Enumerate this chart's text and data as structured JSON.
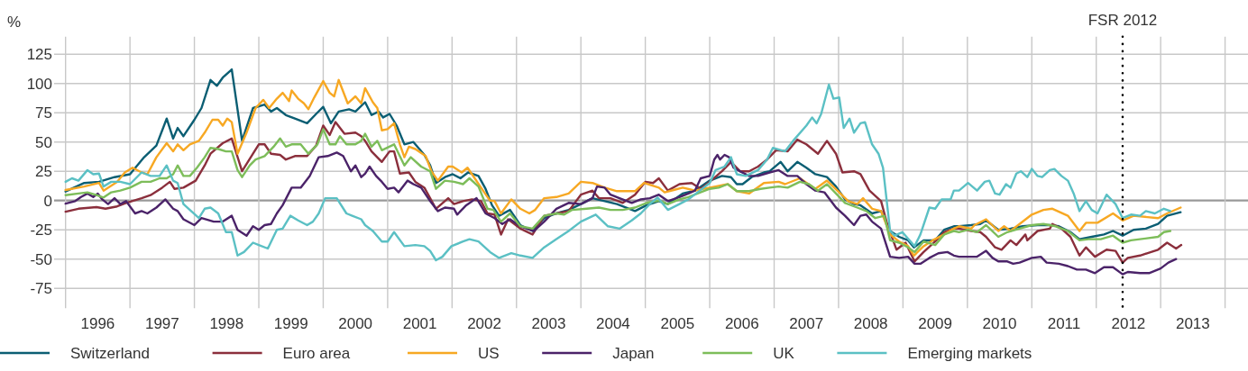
{
  "chart_data": {
    "type": "line",
    "ylabel": "%",
    "xlim": [
      1996,
      2014.3
    ],
    "ylim": [
      -92,
      140
    ],
    "xticks": [
      {
        "value": 1996,
        "label": null
      },
      {
        "value": 1996.5,
        "label": "1996"
      },
      {
        "value": 1997,
        "label": null
      },
      {
        "value": 1997.5,
        "label": "1997"
      },
      {
        "value": 1998,
        "label": null
      },
      {
        "value": 1998.5,
        "label": "1998"
      },
      {
        "value": 1999,
        "label": null
      },
      {
        "value": 1999.5,
        "label": "1999"
      },
      {
        "value": 2000,
        "label": null
      },
      {
        "value": 2000.5,
        "label": "2000"
      },
      {
        "value": 2001,
        "label": null
      },
      {
        "value": 2001.5,
        "label": "2001"
      },
      {
        "value": 2002,
        "label": null
      },
      {
        "value": 2002.5,
        "label": "2002"
      },
      {
        "value": 2003,
        "label": null
      },
      {
        "value": 2003.5,
        "label": "2003"
      },
      {
        "value": 2004,
        "label": null
      },
      {
        "value": 2004.5,
        "label": "2004"
      },
      {
        "value": 2005,
        "label": null
      },
      {
        "value": 2005.5,
        "label": "2005"
      },
      {
        "value": 2006,
        "label": null
      },
      {
        "value": 2006.5,
        "label": "2006"
      },
      {
        "value": 2007,
        "label": null
      },
      {
        "value": 2007.5,
        "label": "2007"
      },
      {
        "value": 2008,
        "label": null
      },
      {
        "value": 2008.5,
        "label": "2008"
      },
      {
        "value": 2009,
        "label": null
      },
      {
        "value": 2009.5,
        "label": "2009"
      },
      {
        "value": 2010,
        "label": null
      },
      {
        "value": 2010.5,
        "label": "2010"
      },
      {
        "value": 2011,
        "label": null
      },
      {
        "value": 2011.5,
        "label": "2011"
      },
      {
        "value": 2012,
        "label": null
      },
      {
        "value": 2012.5,
        "label": "2012"
      },
      {
        "value": 2013,
        "label": null
      },
      {
        "value": 2013.5,
        "label": "2013"
      },
      {
        "value": 2014,
        "label": null
      }
    ],
    "yticks": [
      125,
      100,
      75,
      50,
      25,
      0,
      -25,
      -50,
      -75
    ],
    "grid": true,
    "legend": "bottom",
    "ref_lines": [
      {
        "axis": "x",
        "value": 2012.41,
        "label": "FSR 2012",
        "color": "#000000",
        "line_style": "dotted"
      }
    ],
    "series": [
      {
        "name": "Switzerland",
        "color": "#0b5e73",
        "x": [
          1996.0,
          1996.29,
          1996.52,
          1996.76,
          1997.0,
          1997.22,
          1997.41,
          1997.57,
          1997.67,
          1997.74,
          1997.83,
          1998.0,
          1998.11,
          1998.25,
          1998.35,
          1998.44,
          1998.58,
          1998.74,
          1998.91,
          1999.09,
          1999.19,
          1999.28,
          1999.42,
          1999.56,
          1999.75,
          1999.89,
          2000.0,
          2000.12,
          2000.24,
          2000.4,
          2000.5,
          2000.65,
          2000.75,
          2000.86,
          2000.93,
          2001.03,
          2001.14,
          2001.26,
          2001.4,
          2001.57,
          2001.66,
          2001.75,
          2001.89,
          2002.01,
          2002.13,
          2002.25,
          2002.41,
          2002.52,
          2002.62,
          2002.73,
          2002.9,
          2003.06,
          2003.25,
          2003.43,
          2003.62,
          2003.81,
          2004.0,
          2004.18,
          2004.37,
          2004.56,
          2004.84,
          2005.02,
          2005.21,
          2005.35,
          2005.58,
          2005.77,
          2006.0,
          2006.19,
          2006.33,
          2006.42,
          2006.51,
          2006.65,
          2006.84,
          2006.93,
          2007.1,
          2007.21,
          2007.36,
          2007.5,
          2007.64,
          2007.82,
          2007.96,
          2008.1,
          2008.24,
          2008.34,
          2008.52,
          2008.66,
          2008.8,
          2008.94,
          2009.08,
          2009.17,
          2009.32,
          2009.5,
          2009.64,
          2009.79,
          2009.87,
          2010.06,
          2010.2,
          2010.29,
          2010.48,
          2010.67,
          2010.86,
          2011.09,
          2011.28,
          2011.42,
          2011.6,
          2011.74,
          2011.93,
          2012.12,
          2012.26,
          2012.41,
          2012.58,
          2012.77,
          2012.96,
          2013.1,
          2013.31
        ],
        "values": [
          7.7,
          15,
          16,
          20,
          22.5,
          37,
          47,
          70,
          53,
          62,
          55,
          69,
          79,
          103,
          98,
          105,
          112,
          51,
          79,
          82,
          76,
          79,
          73,
          70,
          66,
          74,
          80,
          66,
          76,
          78,
          76,
          84,
          73,
          76,
          71,
          74,
          64,
          48,
          50,
          39,
          30,
          15,
          20,
          22.5,
          19,
          24,
          21,
          10,
          -4,
          -13,
          -8,
          -21,
          -26,
          -15,
          -11,
          -8,
          -3,
          2,
          -0.5,
          -3,
          -9,
          -4,
          -0.5,
          -3,
          6,
          8.5,
          17,
          21,
          20,
          14,
          14,
          20,
          24,
          25,
          33,
          25,
          33,
          28,
          22.5,
          20,
          12,
          1,
          -3,
          -4,
          -11,
          -9,
          -26,
          -31,
          -34,
          -40,
          -34,
          -34,
          -25,
          -22,
          -22,
          -21,
          -20,
          -17,
          -25,
          -24,
          -22,
          -21,
          -21,
          -22,
          -27,
          -33,
          -31,
          -29,
          -26,
          -30,
          -25,
          -24,
          -20,
          -13,
          -10
        ]
      },
      {
        "name": "Euro area",
        "color": "#8b2f3c",
        "x": [
          1996.0,
          1996.2,
          1996.48,
          1996.62,
          1996.8,
          1996.94,
          1997.18,
          1997.32,
          1997.5,
          1997.62,
          1997.69,
          1997.83,
          1998.02,
          1998.16,
          1998.25,
          1998.44,
          1998.58,
          1998.74,
          1998.91,
          1999.0,
          1999.09,
          1999.19,
          1999.33,
          1999.42,
          1999.56,
          1999.75,
          1999.89,
          2000.0,
          2000.1,
          2000.19,
          2000.33,
          2000.5,
          2000.59,
          2000.65,
          2000.75,
          2000.91,
          2001.03,
          2001.1,
          2001.19,
          2001.33,
          2001.43,
          2001.57,
          2001.66,
          2001.75,
          2001.94,
          2002.03,
          2002.17,
          2002.31,
          2002.45,
          2002.55,
          2002.66,
          2002.76,
          2002.87,
          2003.06,
          2003.25,
          2003.43,
          2003.62,
          2003.81,
          2004.0,
          2004.18,
          2004.28,
          2004.46,
          2004.65,
          2004.84,
          2005.0,
          2005.12,
          2005.21,
          2005.35,
          2005.53,
          2005.72,
          2005.86,
          2006.0,
          2006.19,
          2006.33,
          2006.47,
          2006.61,
          2006.75,
          2006.89,
          2007.03,
          2007.21,
          2007.36,
          2007.5,
          2007.68,
          2007.82,
          2007.96,
          2008.06,
          2008.24,
          2008.34,
          2008.48,
          2008.66,
          2008.76,
          2008.9,
          2009.04,
          2009.18,
          2009.32,
          2009.5,
          2009.64,
          2009.79,
          2009.87,
          2010.06,
          2010.2,
          2010.29,
          2010.43,
          2010.53,
          2010.67,
          2010.76,
          2010.9,
          2010.93,
          2011.09,
          2011.28,
          2011.32,
          2011.46,
          2011.6,
          2011.74,
          2011.84,
          2011.98,
          2012.16,
          2012.3,
          2012.41,
          2012.49,
          2012.68,
          2012.96,
          2013.1,
          2013.24,
          2013.32
        ],
        "values": [
          -9.5,
          -7,
          -5.6,
          -7,
          -5,
          -2,
          2,
          4.6,
          11,
          16,
          10,
          11,
          17,
          30,
          40,
          49,
          53,
          25,
          40,
          48,
          48,
          40,
          39,
          35,
          38,
          38,
          47,
          64,
          56,
          67,
          57,
          58,
          55,
          51,
          42,
          33,
          42,
          42,
          23,
          24,
          16,
          11,
          2,
          -7,
          2,
          -3,
          -0.5,
          1,
          -0.5,
          -11,
          -12,
          -29,
          -16,
          -24,
          -29,
          -13,
          -11,
          -9,
          5,
          8.5,
          2,
          2,
          -2,
          5,
          16,
          15,
          19,
          8.5,
          14,
          15,
          10,
          16,
          25,
          33,
          25,
          25,
          29,
          35,
          43,
          42,
          52,
          48,
          40,
          51,
          40,
          24,
          25,
          22.5,
          8.5,
          -0.5,
          -21,
          -42,
          -36,
          -52,
          -44,
          -35,
          -27,
          -24,
          -24,
          -26,
          -27,
          -31,
          -40,
          -42,
          -34,
          -38,
          -29,
          -34,
          -26,
          -24,
          -20,
          -24,
          -31,
          -47,
          -40,
          -48,
          -42,
          -43,
          -53,
          -49,
          -47,
          -42,
          -36,
          -41,
          -38
        ]
      },
      {
        "name": "US",
        "color": "#f7a823",
        "x": [
          1996.0,
          1996.29,
          1996.52,
          1996.59,
          1996.8,
          1996.92,
          1997.04,
          1997.18,
          1997.27,
          1997.41,
          1997.57,
          1997.67,
          1997.74,
          1997.83,
          1997.93,
          1998.07,
          1998.16,
          1998.28,
          1998.37,
          1998.44,
          1998.51,
          1998.58,
          1998.67,
          1998.81,
          1998.95,
          1999.07,
          1999.16,
          1999.28,
          1999.37,
          1999.47,
          1999.51,
          1999.61,
          1999.7,
          1999.77,
          1999.86,
          2000.0,
          2000.1,
          2000.17,
          2000.24,
          2000.38,
          2000.5,
          2000.59,
          2000.65,
          2000.77,
          2000.84,
          2000.91,
          2001.0,
          2001.1,
          2001.19,
          2001.26,
          2001.33,
          2001.43,
          2001.59,
          2001.68,
          2001.78,
          2001.94,
          2002.01,
          2002.15,
          2002.24,
          2002.34,
          2002.5,
          2002.59,
          2002.66,
          2002.76,
          2002.92,
          2003.06,
          2003.2,
          2003.29,
          2003.43,
          2003.62,
          2003.81,
          2004.0,
          2004.18,
          2004.37,
          2004.56,
          2004.84,
          2004.98,
          2005.21,
          2005.3,
          2005.44,
          2005.58,
          2005.77,
          2006.0,
          2006.28,
          2006.42,
          2006.61,
          2006.84,
          2007.07,
          2007.17,
          2007.4,
          2007.64,
          2007.82,
          2008.01,
          2008.15,
          2008.29,
          2008.38,
          2008.52,
          2008.66,
          2008.8,
          2008.94,
          2009.08,
          2009.17,
          2009.32,
          2009.46,
          2009.64,
          2009.79,
          2009.87,
          2010.06,
          2010.11,
          2010.29,
          2010.48,
          2010.57,
          2010.67,
          2010.81,
          2011.0,
          2011.18,
          2011.32,
          2011.56,
          2011.74,
          2011.84,
          2012.02,
          2012.26,
          2012.41,
          2012.58,
          2012.96,
          2013.1,
          2013.31
        ],
        "values": [
          9,
          12,
          15,
          8.5,
          16,
          24,
          28,
          24,
          22.5,
          37,
          49,
          42,
          48,
          43,
          48,
          51,
          58,
          69,
          69,
          64,
          70,
          67,
          40,
          58,
          79,
          86,
          79,
          87,
          92,
          85,
          94,
          87,
          83,
          78,
          88,
          102,
          92,
          89,
          103,
          83,
          89,
          83,
          96,
          84,
          79,
          60,
          61,
          66,
          48,
          37,
          46,
          44,
          38,
          25,
          17,
          29,
          29,
          24,
          28,
          20,
          7,
          0,
          -0.5,
          -11,
          1,
          -7,
          -11,
          -8,
          2,
          3,
          6,
          16,
          15,
          11,
          8,
          8,
          15,
          11,
          7,
          9,
          11,
          8.5,
          11,
          14,
          8,
          6,
          15,
          16,
          14,
          19,
          10,
          17,
          7,
          -0.5,
          -3,
          2,
          -7,
          -9,
          -29,
          -35,
          -39,
          -47,
          -39,
          -34,
          -29,
          -24,
          -22,
          -24,
          -21,
          -16,
          -26,
          -22,
          -26,
          -20,
          -12,
          -8,
          -7,
          -13,
          -26,
          -19,
          -19,
          -11,
          -17,
          -13,
          -15,
          -11,
          -6
        ]
      },
      {
        "name": "Japan",
        "color": "#4b2369",
        "x": [
          1996.0,
          1996.15,
          1996.24,
          1996.34,
          1996.43,
          1996.5,
          1996.57,
          1996.66,
          1996.76,
          1996.85,
          1996.94,
          1997.08,
          1997.18,
          1997.27,
          1997.41,
          1997.55,
          1997.67,
          1997.74,
          1997.83,
          1998.0,
          1998.11,
          1998.3,
          1998.44,
          1998.58,
          1998.67,
          1998.81,
          1998.91,
          1999.0,
          1999.09,
          1999.19,
          1999.28,
          1999.37,
          1999.51,
          1999.65,
          1999.79,
          1999.93,
          2000.07,
          2000.21,
          2000.31,
          2000.43,
          2000.5,
          2000.59,
          2000.65,
          2000.72,
          2000.82,
          2000.91,
          2001.0,
          2001.1,
          2001.17,
          2001.31,
          2001.4,
          2001.52,
          2001.66,
          2001.78,
          2001.89,
          2002.03,
          2002.08,
          2002.22,
          2002.38,
          2002.52,
          2002.66,
          2002.78,
          2002.9,
          2003.06,
          2003.27,
          2003.43,
          2003.62,
          2003.81,
          2004.0,
          2004.18,
          2004.25,
          2004.37,
          2004.46,
          2004.6,
          2004.79,
          2004.93,
          2005.07,
          2005.21,
          2005.35,
          2005.53,
          2005.67,
          2005.77,
          2005.86,
          2006.0,
          2006.07,
          2006.12,
          2006.16,
          2006.23,
          2006.3,
          2006.37,
          2006.47,
          2006.61,
          2006.75,
          2006.93,
          2007.07,
          2007.21,
          2007.36,
          2007.5,
          2007.64,
          2007.78,
          2007.96,
          2008.1,
          2008.24,
          2008.34,
          2008.43,
          2008.52,
          2008.66,
          2008.8,
          2008.94,
          2009.08,
          2009.18,
          2009.27,
          2009.41,
          2009.55,
          2009.69,
          2009.79,
          2009.87,
          2010.06,
          2010.15,
          2010.29,
          2010.39,
          2010.48,
          2010.62,
          2010.71,
          2010.81,
          2011.0,
          2011.14,
          2011.23,
          2011.42,
          2011.56,
          2011.7,
          2011.84,
          2011.98,
          2012.12,
          2012.26,
          2012.41,
          2012.49,
          2012.68,
          2012.82,
          2013.0,
          2013.12,
          2013.24
        ],
        "values": [
          -2.6,
          -0.5,
          3,
          6,
          3,
          6,
          1,
          -3,
          2,
          -3,
          -0.5,
          -11,
          -9,
          -11,
          -6,
          1,
          -7,
          -9,
          -16,
          -21,
          -15,
          -18,
          -18,
          -13,
          -25,
          -30,
          -22,
          -25,
          -21,
          -20,
          -11,
          -4,
          11,
          11,
          21,
          37,
          38,
          41,
          38,
          25,
          30,
          20,
          23,
          29,
          21,
          16,
          10,
          11,
          7,
          17,
          14,
          11,
          -0.5,
          -9,
          -6,
          -7,
          -12,
          -4,
          2,
          -11,
          -15,
          -20,
          -16,
          -22,
          -26,
          -18,
          -7,
          -2,
          -3,
          2,
          12,
          11,
          5,
          2,
          -2,
          1,
          2,
          5,
          -0.5,
          3,
          6,
          8.5,
          19,
          21,
          35,
          39,
          35,
          39,
          37,
          28,
          25,
          21,
          21,
          24,
          26,
          21,
          21,
          14,
          8.5,
          7,
          -6,
          -13,
          -21,
          -13,
          -12,
          -18,
          -24,
          -48,
          -49,
          -48,
          -54,
          -54,
          -49,
          -45,
          -44,
          -47,
          -48,
          -48,
          -48,
          -43,
          -49,
          -52,
          -52,
          -54,
          -53,
          -49,
          -48,
          -53,
          -54,
          -56,
          -59,
          -59,
          -62,
          -57,
          -57,
          -63,
          -61,
          -62,
          -62,
          -58,
          -53,
          -50
        ]
      },
      {
        "name": "UK",
        "color": "#7dbd5a",
        "x": [
          1996.0,
          1996.2,
          1996.34,
          1996.48,
          1996.59,
          1996.71,
          1996.85,
          1997.0,
          1997.18,
          1997.32,
          1997.46,
          1997.57,
          1997.67,
          1997.74,
          1997.83,
          1997.93,
          1998.04,
          1998.16,
          1998.25,
          1998.37,
          1998.49,
          1998.58,
          1998.67,
          1998.74,
          1998.86,
          1998.95,
          1999.09,
          1999.23,
          1999.33,
          1999.42,
          1999.51,
          1999.65,
          1999.77,
          1999.91,
          2000.0,
          2000.1,
          2000.19,
          2000.26,
          2000.36,
          2000.5,
          2000.59,
          2000.65,
          2000.75,
          2000.84,
          2000.91,
          2001.1,
          2001.26,
          2001.36,
          2001.52,
          2001.66,
          2001.75,
          2001.89,
          2002.03,
          2002.17,
          2002.27,
          2002.41,
          2002.55,
          2002.64,
          2002.76,
          2002.9,
          2003.06,
          2003.25,
          2003.43,
          2003.62,
          2003.74,
          2003.86,
          2004.09,
          2004.28,
          2004.46,
          2004.65,
          2004.84,
          2005.02,
          2005.21,
          2005.35,
          2005.53,
          2005.67,
          2005.81,
          2006.0,
          2006.14,
          2006.28,
          2006.42,
          2006.61,
          2006.79,
          2006.93,
          2007.07,
          2007.21,
          2007.4,
          2007.54,
          2007.68,
          2007.82,
          2007.96,
          2008.1,
          2008.29,
          2008.43,
          2008.57,
          2008.71,
          2008.8,
          2008.94,
          2009.08,
          2009.18,
          2009.32,
          2009.5,
          2009.64,
          2009.79,
          2009.87,
          2010.01,
          2010.15,
          2010.29,
          2010.48,
          2010.62,
          2010.81,
          2011.0,
          2011.18,
          2011.37,
          2011.56,
          2011.74,
          2011.88,
          2012.07,
          2012.26,
          2012.41,
          2012.54,
          2012.96,
          2013.05,
          2013.15
        ],
        "values": [
          4.6,
          6,
          7,
          4.6,
          2.6,
          7,
          8.5,
          11,
          16,
          16,
          19,
          19,
          22.5,
          30,
          21,
          21,
          28,
          37,
          45,
          44,
          42,
          42,
          26,
          20,
          30,
          35,
          38,
          46,
          53,
          46,
          48,
          48,
          40,
          48,
          61,
          48,
          48,
          55,
          48,
          48,
          51,
          57,
          46,
          51,
          43,
          48,
          30,
          37,
          29,
          25,
          10,
          17,
          16,
          14,
          19,
          12,
          -7,
          -8,
          -18,
          -11,
          -22,
          -24,
          -13,
          -11,
          -12,
          -8,
          -7,
          -6,
          -8,
          -8,
          -6,
          -2,
          0,
          -3,
          1,
          3,
          6,
          10,
          11,
          14,
          8,
          8,
          10,
          11,
          12,
          11,
          16,
          14,
          8.5,
          14,
          6,
          -2,
          -6,
          -9,
          -15,
          -13,
          -34,
          -36,
          -40,
          -44,
          -35,
          -38,
          -29,
          -26,
          -27,
          -25,
          -27,
          -21,
          -31,
          -27,
          -24,
          -21,
          -20,
          -22,
          -26,
          -34,
          -33,
          -33,
          -30,
          -36,
          -34,
          -31,
          -27,
          -26
        ]
      },
      {
        "name": "Emerging markets",
        "color": "#5bc0c4",
        "x": [
          1996.0,
          1996.1,
          1996.2,
          1996.34,
          1996.43,
          1996.52,
          1996.59,
          1996.71,
          1996.85,
          1997.0,
          1997.18,
          1997.32,
          1997.46,
          1997.57,
          1997.67,
          1997.74,
          1997.83,
          1997.93,
          1998.07,
          1998.16,
          1998.25,
          1998.37,
          1998.49,
          1998.58,
          1998.67,
          1998.77,
          1998.91,
          1999.0,
          1999.14,
          1999.28,
          1999.37,
          1999.49,
          1999.61,
          1999.75,
          1999.84,
          1999.93,
          2000.03,
          2000.12,
          2000.21,
          2000.36,
          2000.45,
          2000.59,
          2000.65,
          2000.77,
          2000.91,
          2001.0,
          2001.1,
          2001.26,
          2001.43,
          2001.57,
          2001.66,
          2001.75,
          2001.85,
          2001.99,
          2002.17,
          2002.27,
          2002.41,
          2002.59,
          2002.73,
          2002.92,
          2003.06,
          2003.25,
          2003.43,
          2003.62,
          2003.81,
          2004.0,
          2004.23,
          2004.42,
          2004.6,
          2004.79,
          2004.93,
          2005.07,
          2005.19,
          2005.35,
          2005.53,
          2005.67,
          2005.81,
          2006.0,
          2006.09,
          2006.23,
          2006.33,
          2006.42,
          2006.56,
          2006.75,
          2006.89,
          2006.98,
          2007.17,
          2007.31,
          2007.5,
          2007.59,
          2007.66,
          2007.73,
          2007.85,
          2007.92,
          2008.01,
          2008.08,
          2008.17,
          2008.24,
          2008.34,
          2008.41,
          2008.52,
          2008.62,
          2008.69,
          2008.8,
          2008.87,
          2008.99,
          2009.18,
          2009.27,
          2009.41,
          2009.5,
          2009.6,
          2009.74,
          2009.79,
          2009.87,
          2010.01,
          2010.15,
          2010.27,
          2010.34,
          2010.43,
          2010.5,
          2010.6,
          2010.67,
          2010.76,
          2010.83,
          2010.93,
          2011.0,
          2011.09,
          2011.16,
          2011.28,
          2011.35,
          2011.46,
          2011.56,
          2011.65,
          2011.74,
          2011.84,
          2011.93,
          2012.02,
          2012.16,
          2012.3,
          2012.41,
          2012.54,
          2012.68,
          2012.77,
          2012.91,
          2013.05,
          2013.15
        ],
        "values": [
          16,
          19,
          17,
          26,
          22.5,
          23,
          12,
          16,
          16,
          14,
          24,
          21,
          21,
          30,
          17,
          15,
          -3,
          -8,
          -15,
          -7,
          -6,
          -11,
          -27,
          -27,
          -47,
          -44,
          -36,
          -38,
          -41,
          -25,
          -24,
          -13,
          -17,
          -21,
          -18,
          -11,
          2,
          2,
          2,
          -11,
          -13,
          -16,
          -21,
          -26,
          -35,
          -35,
          -27,
          -39,
          -38,
          -39,
          -43,
          -51,
          -48,
          -39,
          -35,
          -33,
          -35,
          -44,
          -49,
          -45,
          -47,
          -49,
          -40,
          -33,
          -26,
          -18,
          -12,
          -22,
          -24,
          -17,
          -11,
          -3,
          2.6,
          -8,
          -3,
          1,
          7,
          15,
          26,
          29,
          37,
          22.5,
          21,
          26,
          35,
          45,
          42,
          52,
          64,
          71,
          66,
          74,
          99,
          87,
          88,
          62,
          70,
          58,
          66,
          67,
          48,
          40,
          28,
          -26,
          -30,
          -27,
          -39,
          -29,
          -6,
          -7,
          1,
          1,
          8.5,
          8.5,
          15,
          8.5,
          16,
          17,
          6,
          5,
          14,
          11,
          23,
          25,
          20,
          27,
          21,
          20,
          26,
          27,
          21,
          17,
          6,
          -9,
          -0.5,
          -8,
          -11,
          5,
          -3,
          -15,
          -12,
          -13,
          -9,
          -11,
          -7,
          -9
        ]
      }
    ]
  }
}
